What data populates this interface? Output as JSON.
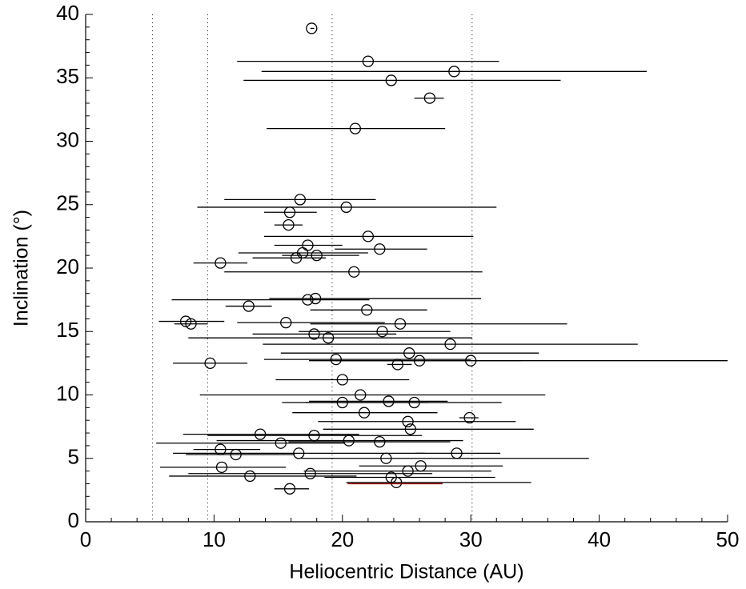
{
  "chart_data": {
    "type": "errorbar-scatter",
    "xlabel": "Heliocentric Distance (AU)",
    "ylabel": "Inclination (°)",
    "xlim": [
      0,
      50
    ],
    "ylim": [
      0,
      40
    ],
    "xticks": [
      0,
      10,
      20,
      30,
      40,
      50
    ],
    "yticks": [
      0,
      5,
      10,
      15,
      20,
      25,
      30,
      35,
      40
    ],
    "xminorticks": [
      2,
      4,
      6,
      8,
      12,
      14,
      16,
      18,
      22,
      24,
      26,
      28,
      32,
      34,
      36,
      38,
      42,
      44,
      46,
      48
    ],
    "yminorticks": [
      1,
      2,
      3,
      4,
      6,
      7,
      8,
      9,
      11,
      12,
      13,
      14,
      16,
      17,
      18,
      19,
      21,
      22,
      23,
      24,
      26,
      27,
      28,
      29,
      31,
      32,
      33,
      34,
      36,
      37,
      38,
      39
    ],
    "vlines": [
      5.2,
      9.5,
      19.2,
      30.1
    ],
    "series": [
      {
        "color": "#000000",
        "marker": "circle",
        "x": [
          17.6,
          22.0,
          28.7,
          23.8,
          26.8,
          21.0,
          16.7,
          20.3,
          15.9,
          15.8,
          22.0,
          17.3,
          22.9,
          16.9,
          18.0,
          16.4,
          10.5,
          20.9,
          17.3,
          17.9,
          12.7,
          21.9,
          7.8,
          8.2,
          15.6,
          24.5,
          17.8,
          23.1,
          18.9,
          28.4,
          25.2,
          19.5,
          26.0,
          30.0,
          9.7,
          24.3,
          20.0,
          21.4,
          20.0,
          23.6,
          25.6,
          21.7,
          29.9,
          25.1,
          25.3,
          13.6,
          17.8,
          20.5,
          22.9,
          15.2,
          10.5,
          16.6,
          11.7,
          28.9,
          23.4,
          10.6,
          26.1,
          25.1,
          17.5,
          12.8,
          23.8,
          24.2,
          15.9
        ],
        "y": [
          38.9,
          36.3,
          35.5,
          34.8,
          33.4,
          31.0,
          25.4,
          24.8,
          24.4,
          23.4,
          22.5,
          21.8,
          21.5,
          21.2,
          21.0,
          20.8,
          20.4,
          19.7,
          17.5,
          17.6,
          17.0,
          16.7,
          15.8,
          15.6,
          15.7,
          15.6,
          14.8,
          15.0,
          14.5,
          14.0,
          13.3,
          12.8,
          12.7,
          12.7,
          12.5,
          12.4,
          11.2,
          10.0,
          9.4,
          9.5,
          9.4,
          8.6,
          8.2,
          7.9,
          7.3,
          6.9,
          6.8,
          6.4,
          6.3,
          6.2,
          5.7,
          5.4,
          5.3,
          5.4,
          5.0,
          4.3,
          4.4,
          4.0,
          3.8,
          3.6,
          3.5,
          3.1,
          2.6
        ],
        "x_low": [
          17.5,
          11.8,
          13.7,
          12.3,
          25.6,
          14.1,
          10.8,
          8.7,
          13.9,
          14.7,
          13.9,
          14.7,
          19.4,
          11.9,
          15.3,
          13.0,
          8.4,
          10.8,
          6.7,
          14.3,
          10.9,
          17.5,
          5.7,
          6.9,
          11.8,
          17.5,
          13.0,
          16.6,
          8.0,
          13.8,
          15.2,
          13.9,
          17.4,
          19.5,
          6.8,
          23.5,
          14.8,
          8.9,
          15.3,
          17.4,
          17.1,
          16.1,
          29.1,
          18.1,
          18.5,
          7.6,
          9.5,
          10.2,
          15.8,
          5.5,
          8.4,
          6.8,
          7.8,
          25.7,
          16.8,
          5.8,
          21.3,
          17.0,
          8.0,
          6.5,
          18.6,
          20.3,
          14.7
        ],
        "x_high": [
          17.8,
          32.2,
          43.7,
          37.0,
          27.9,
          28.0,
          22.6,
          32.0,
          18.0,
          16.9,
          30.2,
          20.0,
          26.6,
          22.0,
          21.3,
          18.7,
          12.6,
          30.9,
          22.1,
          30.8,
          14.5,
          26.6,
          10.8,
          9.5,
          23.3,
          37.5,
          24.2,
          28.4,
          30.1,
          43.0,
          35.3,
          30.0,
          33.9,
          50.0,
          12.6,
          25.4,
          25.2,
          35.8,
          26.7,
          28.2,
          32.4,
          27.4,
          30.6,
          33.5,
          34.9,
          21.3,
          26.2,
          29.4,
          28.4,
          20.2,
          13.6,
          26.4,
          16.3,
          32.3,
          39.2,
          15.6,
          32.5,
          31.6,
          27.0,
          21.1,
          31.9,
          34.7,
          17.4
        ]
      },
      {
        "color": "#8b0000",
        "marker": "none",
        "x": [
          24.1
        ],
        "y": [
          3.0
        ],
        "x_low": [
          20.4
        ],
        "x_high": [
          27.8
        ]
      }
    ]
  }
}
